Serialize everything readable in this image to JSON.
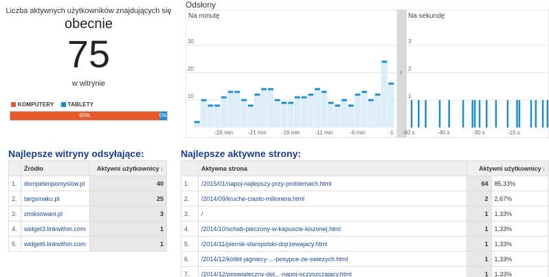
{
  "realtime": {
    "caption": "Liczba aktywnych użytkowników znajdujących się",
    "now_label": "obecnie",
    "active_users": "75",
    "unit_label": "w witrynie",
    "devices": [
      {
        "name": "KOMPUTERY",
        "percent_label": "95%",
        "share": 0.95,
        "color": "#e8582a"
      },
      {
        "name": "TABLETY",
        "percent_label": "5%",
        "share": 0.05,
        "color": "#1a8ccf"
      }
    ]
  },
  "pageviews": {
    "title": "Odsłony",
    "per_minute_label": "Na minutę",
    "per_second_label": "Na sekundę"
  },
  "chart_data": [
    {
      "type": "bar",
      "title": "Na minutę",
      "ylim": [
        0,
        30
      ],
      "yticks": [
        "10",
        "20",
        "30"
      ],
      "xticks": [
        "-26 min",
        "-21 min",
        "-16 min",
        "-11 min",
        "-6 min",
        "-1"
      ],
      "x": [
        -30,
        -29,
        -28,
        -27,
        -26,
        -25,
        -24,
        -23,
        -22,
        -21,
        -20,
        -19,
        -18,
        -17,
        -16,
        -15,
        -14,
        -13,
        -12,
        -11,
        -10,
        -9,
        -8,
        -7,
        -6,
        -5,
        -4,
        -3,
        -2,
        -1
      ],
      "values": [
        2,
        10,
        8,
        8,
        11,
        13,
        13,
        10,
        8,
        12,
        14,
        14,
        10,
        9,
        9,
        11,
        11,
        12,
        14,
        13,
        9,
        8,
        10,
        8,
        12,
        13,
        10,
        12,
        24,
        16
      ],
      "color": "#1a8ccf"
    },
    {
      "type": "bar",
      "title": "Na sekundę",
      "ylim": [
        0,
        3
      ],
      "yticks": [
        "1",
        "2",
        "3"
      ],
      "xticks": [
        "-60 s",
        "-45 s",
        "-30 s",
        "-15 s"
      ],
      "x": [
        -59,
        -56,
        -53,
        -47,
        -43,
        -37,
        -33,
        -32,
        -30,
        -27,
        -23,
        -18,
        -14,
        -13,
        -8,
        -6,
        -3,
        -1
      ],
      "values": [
        1,
        1,
        1,
        1,
        1,
        1,
        1,
        1,
        1,
        1,
        1,
        1,
        1,
        1,
        1,
        1,
        1,
        1
      ],
      "color": "#1a8ccf"
    }
  ],
  "referrers": {
    "title": "Najlepsze witryny odsyłające:",
    "col_source": "Źródło",
    "col_users": "Aktywni użytkownicy",
    "sort_icon": "arrow-down",
    "rows": [
      {
        "idx": "1.",
        "source": "dompelenpomyslow.pl",
        "users": "40"
      },
      {
        "idx": "2.",
        "source": "targsmaku.pl",
        "users": "25"
      },
      {
        "idx": "3.",
        "source": "zmiksowani.pl",
        "users": "3"
      },
      {
        "idx": "4.",
        "source": "widget3.linkwithin.com",
        "users": "1"
      },
      {
        "idx": "5.",
        "source": "widget6.linkwithin.com",
        "users": "1"
      }
    ]
  },
  "pages": {
    "title": "Najlepsze aktywne strony:",
    "col_page": "Aktywna strona",
    "col_users": "Aktywni użytkownicy",
    "rows": [
      {
        "idx": "1.",
        "page": "/2015/01/napoj-najlepszy-przy-problemach.html",
        "users": "64",
        "pct": "85,33%"
      },
      {
        "idx": "2.",
        "page": "/2014/09/kruche-ciasto-milionera.html",
        "users": "2",
        "pct": "2,67%"
      },
      {
        "idx": "3.",
        "page": "/",
        "users": "1",
        "pct": "1,33%"
      },
      {
        "idx": "4.",
        "page": "/2014/10/schab-pieczony-w-kapuscie-kiszonej.html",
        "users": "1",
        "pct": "1,33%"
      },
      {
        "idx": "5.",
        "page": "/2014/11/piernik-staropolski-dojrzewajacy.html",
        "users": "1",
        "pct": "1,33%"
      },
      {
        "idx": "6.",
        "page": "/2014/12/kotlet-jagniecy-...-posypce-ze-swiezych.html",
        "users": "1",
        "pct": "1,33%"
      },
      {
        "idx": "7.",
        "page": "/2014/12/poswiateczny-det...-napoj-oczyszczajacy.html",
        "users": "1",
        "pct": "1,33%"
      }
    ]
  }
}
